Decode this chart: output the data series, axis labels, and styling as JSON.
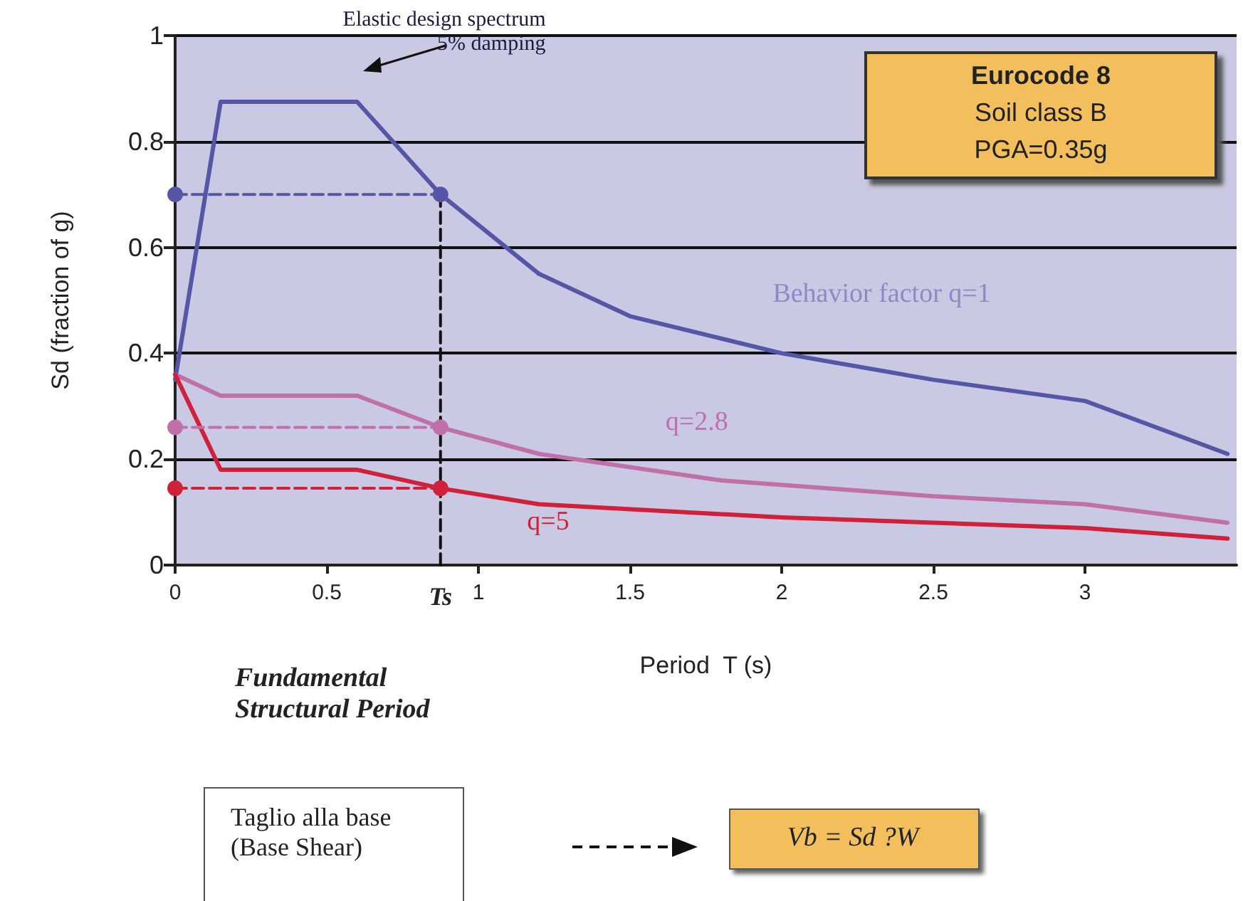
{
  "chart_data": {
    "type": "line",
    "xlabel": "Period  T (s)",
    "ylabel": "Sd (fraction of g)",
    "xlim": [
      0,
      3.5
    ],
    "xticks": [
      0,
      0.5,
      1,
      1.5,
      2,
      2.5,
      3
    ],
    "ylim": [
      0,
      1
    ],
    "yticks": [
      0,
      0.2,
      0.4,
      0.6,
      0.8,
      1
    ],
    "grid": "y",
    "marker": "none",
    "line_style": "solid",
    "series": [
      {
        "color": "#5656a6",
        "x": [
          0,
          0.15,
          0.6,
          0.875,
          1.2,
          1.5,
          2,
          2.5,
          3,
          3.47
        ],
        "values": [
          0.35,
          0.875,
          0.875,
          0.7,
          0.55,
          0.47,
          0.4,
          0.35,
          0.31,
          0.21
        ]
      },
      {
        "color": "#c070a8",
        "x": [
          0,
          0.15,
          0.6,
          0.875,
          1.2,
          1.8,
          2.5,
          3,
          3.47
        ],
        "values": [
          0.36,
          0.32,
          0.32,
          0.26,
          0.21,
          0.16,
          0.13,
          0.115,
          0.08
        ]
      },
      {
        "color": "#d0203a",
        "x": [
          0,
          0.15,
          0.6,
          0.875,
          1.2,
          2,
          3,
          3.47
        ],
        "values": [
          0.36,
          0.18,
          0.18,
          0.145,
          0.115,
          0.09,
          0.07,
          0.05
        ]
      },
      {
        "color": "#5656a6",
        "x": [
          0,
          0.875
        ],
        "values": [
          0.7,
          0.7
        ],
        "line_style": "dashed",
        "marker": "circle"
      },
      {
        "color": "#c070a8",
        "x": [
          0,
          0.875
        ],
        "values": [
          0.26,
          0.26
        ],
        "line_style": "dashed",
        "marker": "circle"
      },
      {
        "color": "#d0203a",
        "x": [
          0,
          0.875
        ],
        "values": [
          0.145,
          0.145
        ],
        "line_style": "dashed",
        "marker": "circle"
      },
      {
        "color": "#111111",
        "x": [
          0.875,
          0.875
        ],
        "values": [
          0,
          0.7
        ],
        "line_style": "dashed",
        "marker": "none"
      }
    ],
    "annotations": [
      {
        "text": "Elastic design spectrum\n5% damping",
        "x": 0.6,
        "y": 0.875
      },
      "Behavior factor q=1",
      "q=2.8",
      "q=5",
      {
        "text": "Ts",
        "x": 0.875,
        "y": 0
      },
      "Eurocode 8\nSoil class B\nPGA=0.35g",
      "Fundamental\nStructural Period",
      "Taglio alla base\n(Base Shear)",
      "Vb = Sd ?W"
    ]
  }
}
